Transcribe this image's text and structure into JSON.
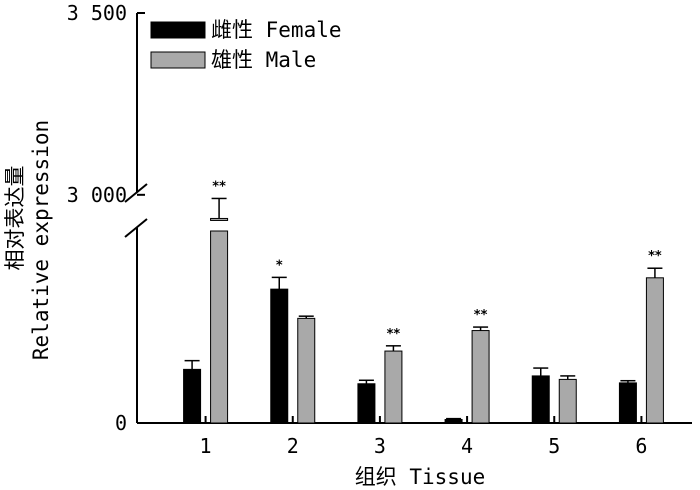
{
  "chart_data": {
    "type": "bar",
    "title": "",
    "xlabel": "组织 Tissue",
    "ylabel_cn": "相对表达量",
    "ylabel_en": "Relative expression",
    "ylim_lower": [
      0,
      500
    ],
    "ylim_upper": [
      2950,
      3500
    ],
    "y_ticks": [
      0,
      3000,
      3500
    ],
    "y_tick_labels": [
      "0",
      "3 000",
      "3 500"
    ],
    "categories": [
      "1",
      "2",
      "3",
      "4",
      "5",
      "6"
    ],
    "legend_position": "top-left",
    "series": [
      {
        "name": "雌性 Female",
        "color": "#000000",
        "values": [
          123,
          307,
          90,
          8,
          108,
          92
        ],
        "errors": [
          20,
          27,
          8,
          2,
          18,
          5
        ],
        "significance": [
          "",
          "*",
          "",
          "",
          "",
          ""
        ]
      },
      {
        "name": "雄性 Male",
        "color": "#a9a9a9",
        "values": [
          2935,
          240,
          165,
          212,
          100,
          333
        ],
        "errors": [
          55,
          5,
          12,
          8,
          8,
          22
        ],
        "significance": [
          "**",
          "",
          "**",
          "**",
          "",
          "**"
        ]
      }
    ]
  }
}
